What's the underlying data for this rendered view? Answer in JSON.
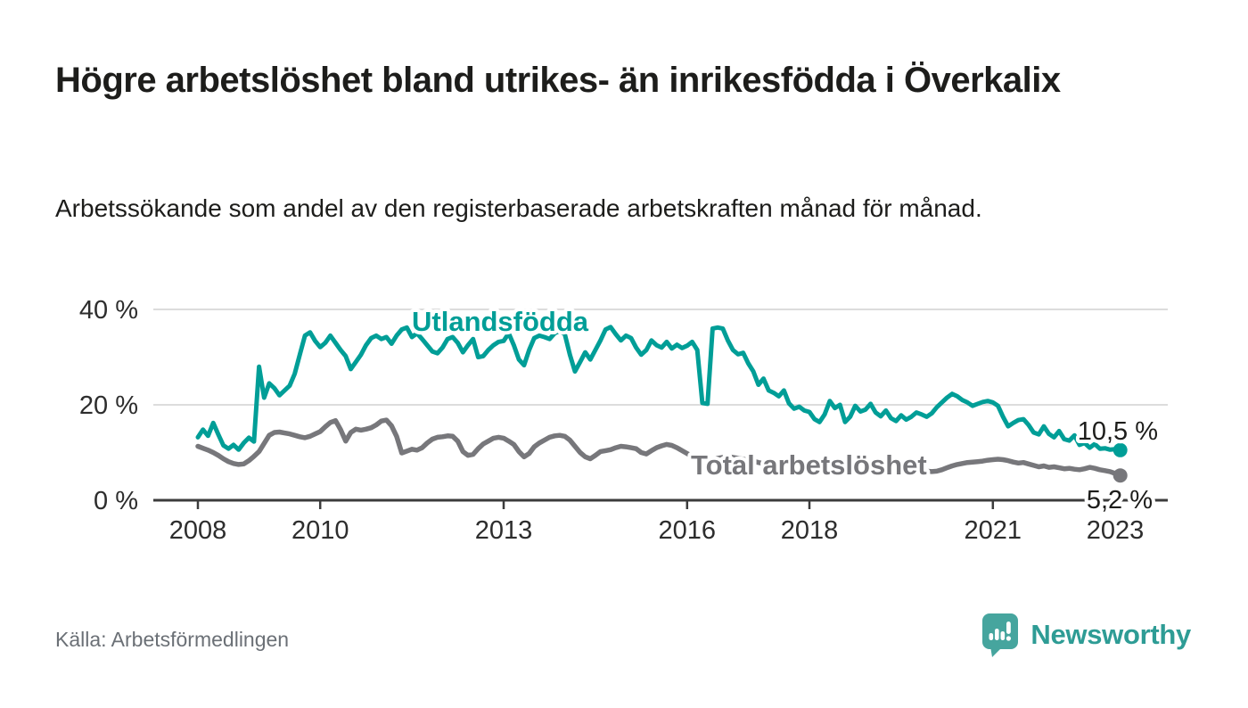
{
  "header": {
    "title": "Högre arbetslöshet bland utrikes- än inrikesfödda i Överkalix",
    "subtitle": "Arbetssökande som andel av den registerbaserade arbetskraften månad för månad."
  },
  "footer": {
    "source": "Källa: Arbetsförmedlingen",
    "brand": "Newsworthy",
    "brand_icon": "bar-chart-speech-bubble-icon"
  },
  "colors": {
    "foreign_born_line": "#009e97",
    "total_line": "#77777b",
    "axis": "#3c3c3c",
    "grid": "#dcdcdc",
    "text": "#1d1d1b",
    "muted": "#6b7076",
    "brand_teal": "#2e9c95",
    "brand_icon_bg": "#46a59e"
  },
  "chart_data": {
    "type": "line",
    "title": "Högre arbetslöshet bland utrikes- än inrikesfödda i Överkalix",
    "subtitle": "Arbetssökande som andel av den registerbaserade arbetskraften månad för månad.",
    "unit": "%",
    "grid": "horizontal",
    "legend": "inline-labels",
    "x_start": "2008-01",
    "x_interval": "monthly",
    "x_end": "2023-02",
    "ylim": [
      0,
      42
    ],
    "x_ticks": [
      {
        "year": 2008,
        "label": "2008"
      },
      {
        "year": 2010,
        "label": "2010"
      },
      {
        "year": 2013,
        "label": "2013"
      },
      {
        "year": 2016,
        "label": "2016"
      },
      {
        "year": 2018,
        "label": "2018"
      },
      {
        "year": 2021,
        "label": "2021"
      },
      {
        "year": 2023,
        "label": "2023"
      }
    ],
    "y_ticks": [
      {
        "value": 0,
        "label": "0 %"
      },
      {
        "value": 20,
        "label": "20 %"
      },
      {
        "value": 40,
        "label": "40 %"
      }
    ],
    "series": [
      {
        "name": "Utlandsfödda",
        "color": "#009e97",
        "end_label": "10,5 %",
        "end_value": 10.5,
        "values": [
          13.2,
          14.8,
          13.5,
          16.2,
          13.8,
          11.5,
          10.8,
          11.6,
          10.6,
          12.0,
          13.1,
          12.3,
          28.0,
          21.5,
          24.5,
          23.5,
          22.0,
          23.0,
          24.0,
          26.5,
          30.5,
          34.5,
          35.2,
          33.4,
          32.1,
          33.0,
          34.5,
          33.0,
          31.5,
          30.2,
          27.5,
          29.0,
          30.5,
          32.5,
          34.0,
          34.5,
          33.8,
          34.2,
          32.8,
          34.5,
          35.8,
          36.2,
          34.2,
          35.0,
          33.8,
          32.5,
          31.2,
          30.8,
          32.0,
          33.8,
          34.2,
          33.0,
          31.0,
          32.5,
          33.8,
          30.0,
          30.2,
          31.5,
          32.5,
          33.2,
          33.4,
          35.0,
          32.5,
          29.5,
          28.3,
          31.5,
          34.0,
          34.5,
          34.2,
          33.8,
          35.0,
          35.5,
          34.8,
          30.5,
          27.0,
          29.0,
          31.0,
          29.5,
          31.5,
          33.5,
          35.8,
          36.3,
          34.8,
          33.5,
          34.5,
          34.0,
          32.0,
          30.5,
          31.5,
          33.5,
          32.5,
          32.0,
          33.2,
          31.8,
          32.6,
          31.9,
          32.4,
          33.2,
          31.5,
          20.4,
          20.2,
          36.0,
          36.2,
          36.0,
          33.5,
          31.5,
          30.6,
          30.9,
          28.7,
          27.0,
          24.2,
          25.5,
          23.0,
          22.5,
          21.8,
          23.0,
          20.3,
          19.2,
          19.6,
          18.8,
          18.5,
          17.0,
          16.4,
          18.0,
          20.8,
          19.3,
          20.0,
          16.4,
          17.5,
          19.8,
          18.6,
          19.0,
          20.2,
          18.4,
          17.6,
          18.8,
          17.2,
          16.6,
          17.8,
          16.9,
          17.5,
          18.4,
          18.0,
          17.5,
          18.2,
          19.5,
          20.5,
          21.5,
          22.3,
          21.8,
          21.0,
          20.5,
          19.8,
          20.2,
          20.6,
          20.8,
          20.5,
          19.8,
          17.5,
          15.5,
          16.2,
          16.8,
          17.0,
          15.8,
          14.2,
          13.8,
          15.5,
          13.9,
          13.2,
          14.5,
          12.8,
          12.5,
          13.6,
          11.6,
          12.0,
          11.0,
          11.8,
          10.8,
          10.9,
          10.6,
          10.7,
          10.5
        ]
      },
      {
        "name": "Total arbetslöshet",
        "color": "#77777b",
        "end_label": "5,2 %",
        "end_value": 5.2,
        "values": [
          11.3,
          10.9,
          10.5,
          10.0,
          9.4,
          8.7,
          8.1,
          7.7,
          7.5,
          7.6,
          8.3,
          9.2,
          10.2,
          11.9,
          13.6,
          14.2,
          14.3,
          14.1,
          13.9,
          13.6,
          13.3,
          13.1,
          13.4,
          13.9,
          14.4,
          15.4,
          16.3,
          16.7,
          14.8,
          12.4,
          14.2,
          14.9,
          14.7,
          14.9,
          15.2,
          15.8,
          16.6,
          16.8,
          15.6,
          13.4,
          9.9,
          10.3,
          10.7,
          10.5,
          11.0,
          12.0,
          12.8,
          13.2,
          13.3,
          13.5,
          13.4,
          12.4,
          10.2,
          9.4,
          9.6,
          10.8,
          11.8,
          12.4,
          13.0,
          13.2,
          13.0,
          12.4,
          11.7,
          10.2,
          9.1,
          9.8,
          11.2,
          12.0,
          12.6,
          13.2,
          13.5,
          13.6,
          13.4,
          12.6,
          11.3,
          10.0,
          9.1,
          8.7,
          9.4,
          10.2,
          10.4,
          10.6,
          11.0,
          11.3,
          11.2,
          11.0,
          10.8,
          10.0,
          9.7,
          10.4,
          11.0,
          11.4,
          11.7,
          11.5,
          11.0,
          10.4,
          9.8,
          9.2,
          8.6,
          8.2,
          8.0,
          8.4,
          8.8,
          9.0,
          9.2,
          9.0,
          8.8,
          8.6,
          8.4,
          8.2,
          7.9,
          7.7,
          7.5,
          7.6,
          7.8,
          7.7,
          7.5,
          7.3,
          7.2,
          7.1,
          7.0,
          6.9,
          6.8,
          6.7,
          6.6,
          6.5,
          6.5,
          6.6,
          6.5,
          6.4,
          6.4,
          6.5,
          6.5,
          6.6,
          6.5,
          6.4,
          6.3,
          6.2,
          6.3,
          6.4,
          6.3,
          6.2,
          6.2,
          6.1,
          6.0,
          6.1,
          6.4,
          6.8,
          7.2,
          7.5,
          7.7,
          7.9,
          8.0,
          8.1,
          8.2,
          8.4,
          8.5,
          8.6,
          8.5,
          8.3,
          8.0,
          7.8,
          7.9,
          7.6,
          7.3,
          7.0,
          7.2,
          6.9,
          7.0,
          6.8,
          6.6,
          6.7,
          6.5,
          6.4,
          6.6,
          6.9,
          6.7,
          6.4,
          6.2,
          6.0,
          5.6,
          5.2
        ]
      }
    ]
  }
}
